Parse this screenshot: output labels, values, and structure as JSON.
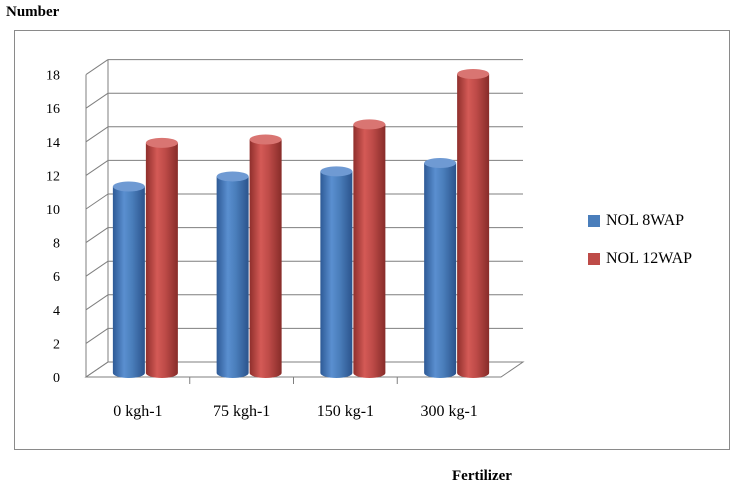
{
  "chart_data": {
    "type": "bar",
    "ylabel": "Number",
    "xlabel": "Fertilizer",
    "categories": [
      "0 kgh-1",
      "75 kgh-1",
      "150 kg-1",
      "300 kg-1"
    ],
    "series": [
      {
        "name": "NOL 8WAP",
        "values": [
          11.1,
          11.7,
          12.0,
          12.5
        ],
        "color": "#4a7ebb"
      },
      {
        "name": "NOL 12WAP",
        "values": [
          13.7,
          13.9,
          14.8,
          17.8
        ],
        "color": "#be4b48"
      }
    ],
    "ylim": [
      0,
      18
    ],
    "yticks": [
      "0",
      "2",
      "4",
      "6",
      "8",
      "10",
      "12",
      "14",
      "16",
      "18"
    ],
    "grid": true,
    "legend": "right",
    "style": "3d-cylinder"
  }
}
